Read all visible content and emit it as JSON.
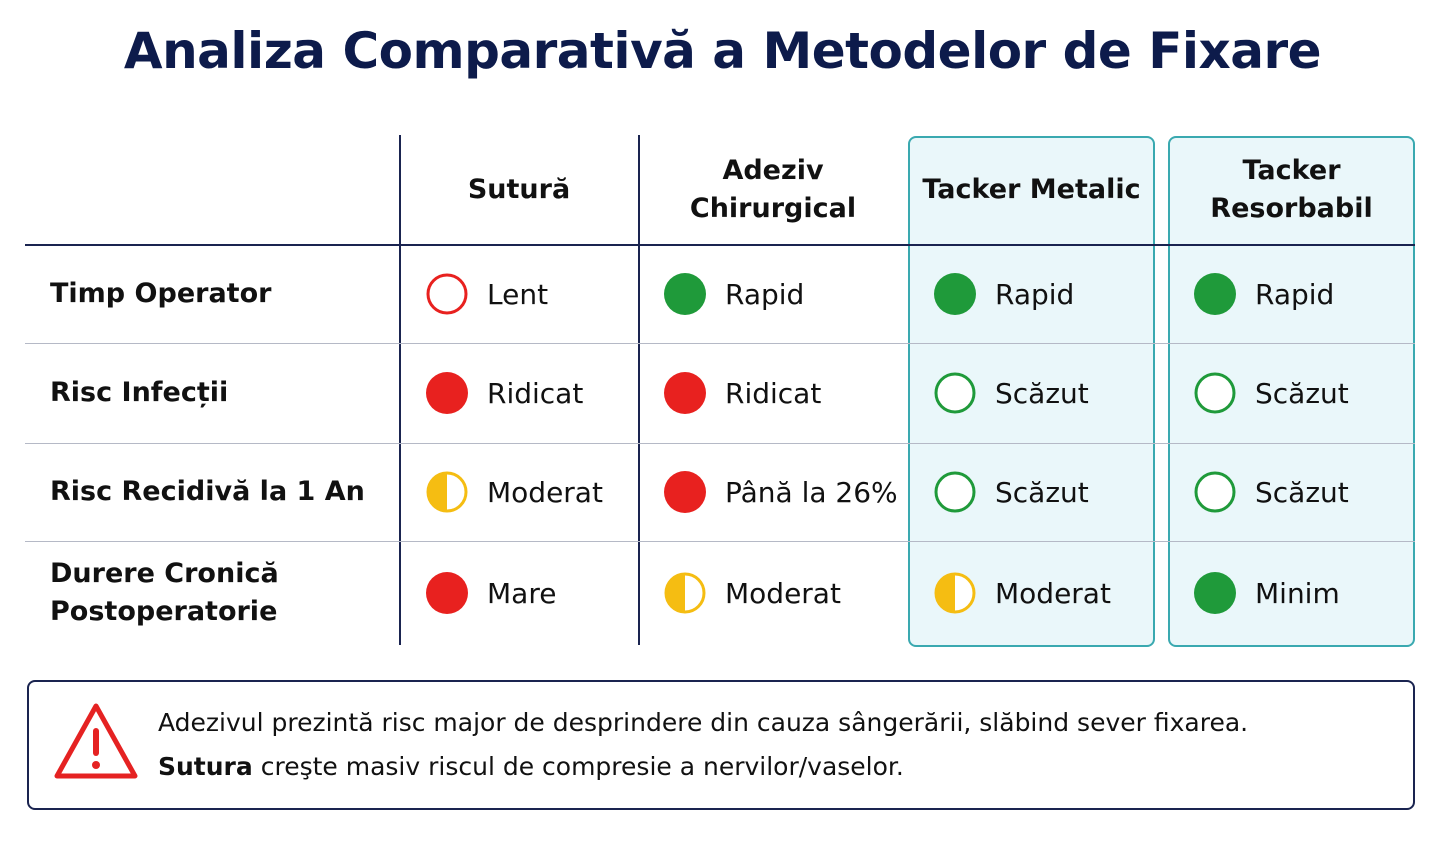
{
  "title": "Analiza Comparativă a Metodelor de Fixare",
  "table": {
    "columns": [
      {
        "label": "Sutură",
        "highlight": false
      },
      {
        "label": "Adeziv Chirurgical",
        "highlight": false
      },
      {
        "label": "Tacker Metalic",
        "highlight": true
      },
      {
        "label": "Tacker Resorbabil",
        "highlight": true
      }
    ],
    "rows": [
      {
        "label": "Timp Operator",
        "cells": [
          {
            "text": "Lent",
            "status": "red-ring"
          },
          {
            "text": "Rapid",
            "status": "green-dot"
          },
          {
            "text": "Rapid",
            "status": "green-dot"
          },
          {
            "text": "Rapid",
            "status": "green-dot"
          }
        ]
      },
      {
        "label": "Risc Infecții",
        "cells": [
          {
            "text": "Ridicat",
            "status": "red-dot"
          },
          {
            "text": "Ridicat",
            "status": "red-dot"
          },
          {
            "text": "Scăzut",
            "status": "green-ring"
          },
          {
            "text": "Scăzut",
            "status": "green-ring"
          }
        ]
      },
      {
        "label": "Risc Recidivă la 1 An",
        "cells": [
          {
            "text": "Moderat",
            "status": "yellow-half"
          },
          {
            "text": "Până la 26%",
            "status": "red-dot"
          },
          {
            "text": "Scăzut",
            "status": "green-ring"
          },
          {
            "text": "Scăzut",
            "status": "green-ring"
          }
        ]
      },
      {
        "label": "Durere Cronică Postoperatorie",
        "cells": [
          {
            "text": "Mare",
            "status": "red-dot"
          },
          {
            "text": "Moderat",
            "status": "yellow-half"
          },
          {
            "text": "Moderat",
            "status": "yellow-half"
          },
          {
            "text": "Minim",
            "status": "green-dot"
          }
        ]
      }
    ]
  },
  "notice": {
    "line1": "Adezivul prezintă risc major de desprindere din cauza sângerării, slăbind sever fixarea.",
    "line2_bold": "Sutura",
    "line2": "creşte masiv riscul de compresie a nervilor/vaselor."
  }
}
